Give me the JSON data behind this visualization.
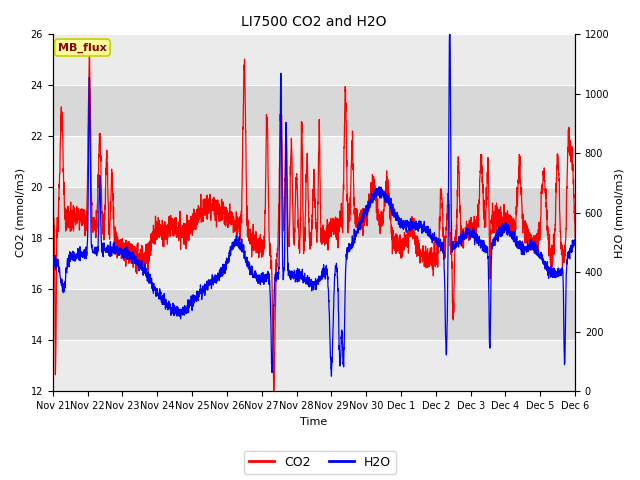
{
  "title": "LI7500 CO2 and H2O",
  "xlabel": "Time",
  "ylabel_left": "CO2 (mmol/m3)",
  "ylabel_right": "H2O (mmol/m3)",
  "co2_color": "#ff0000",
  "h2o_color": "#0000ff",
  "ylim_left": [
    12,
    26
  ],
  "ylim_right": [
    0,
    1200
  ],
  "yticks_left": [
    12,
    14,
    16,
    18,
    20,
    22,
    24,
    26
  ],
  "yticks_right": [
    0,
    200,
    400,
    600,
    800,
    1000,
    1200
  ],
  "background_color": "#ffffff",
  "plot_bg_light": "#ebebeb",
  "plot_bg_dark": "#d8d8d8",
  "grid_color": "#ffffff",
  "annotation_text": "MB_flux",
  "annotation_bg": "#ffff99",
  "annotation_border": "#cccc00",
  "legend_items": [
    "CO2",
    "H2O"
  ],
  "tick_label_fontsize": 7,
  "axis_label_fontsize": 8,
  "title_fontsize": 10,
  "linewidth": 0.9
}
